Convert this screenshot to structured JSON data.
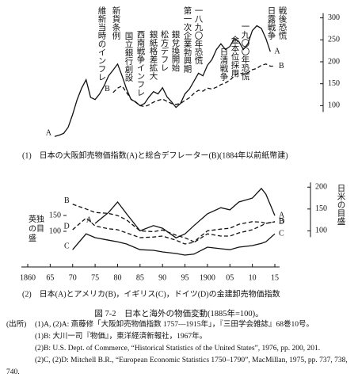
{
  "chart_data": [
    {
      "type": "line",
      "annotations": [
        "維新当時のインフレ",
        "新貨条例",
        "国立銀行創設",
        "西南戦争インフレ",
        "銀紙格差拡大",
        "松方デフレ",
        "銀兌換開始",
        "第一次企業勃興期",
        "一八九〇年恐慌",
        "日清戦争",
        "金本位採用",
        "一九〇〇年恐慌",
        "日露戦争",
        "戦後恐慌"
      ],
      "caption": "(1)　日本の大阪卸売物価指数(A)と総合デフレーター(B)(1884年以前紙幣建)",
      "x": [
        1866,
        1867,
        1868,
        1869,
        1870,
        1871,
        1872,
        1873,
        1874,
        1875,
        1876,
        1877,
        1878,
        1879,
        1880,
        1881,
        1882,
        1883,
        1884,
        1885,
        1886,
        1887,
        1888,
        1889,
        1890,
        1891,
        1892,
        1893,
        1894,
        1895,
        1896,
        1897,
        1898,
        1899,
        1900,
        1901,
        1902,
        1903,
        1904,
        1905,
        1906,
        1907,
        1908,
        1909,
        1910,
        1911,
        1912,
        1913,
        1914,
        1915
      ],
      "xlim": [
        1860,
        1915
      ],
      "series": [
        {
          "name": "A",
          "color": "#111111",
          "style": "solid",
          "values": [
            30,
            33,
            37,
            51,
            80,
            114,
            140,
            159,
            119,
            114,
            127,
            145,
            168,
            181,
            195,
            168,
            138,
            114,
            109,
            100,
            105,
            120,
            132,
            127,
            141,
            120,
            109,
            96,
            105,
            127,
            138,
            156,
            174,
            168,
            192,
            205,
            228,
            241,
            228,
            235,
            253,
            246,
            228,
            241,
            271,
            282,
            276,
            253,
            223,
            null
          ]
        },
        {
          "name": "B",
          "color": "#111111",
          "style": "dashed",
          "values": [
            null,
            null,
            null,
            null,
            null,
            null,
            null,
            null,
            null,
            null,
            null,
            null,
            null,
            130,
            140,
            145,
            130,
            115,
            108,
            100,
            98,
            102,
            108,
            112,
            115,
            110,
            105,
            103,
            105,
            112,
            118,
            128,
            135,
            133,
            140,
            138,
            142,
            148,
            152,
            158,
            168,
            175,
            172,
            175,
            182,
            185,
            192,
            195,
            190,
            190
          ]
        }
      ],
      "ylim": [
        25,
        310
      ],
      "yticks": [
        100,
        150,
        200,
        250,
        300
      ]
    },
    {
      "type": "line",
      "caption": "(2)　日本(A)とアメリカ(B)，イギリス(C)，ドイツ(D)の金建卸売物価指数",
      "y_label": "日米の目盛",
      "y2_label": "英独の目盛",
      "x": [
        1870,
        1873,
        1875,
        1878,
        1880,
        1882,
        1885,
        1888,
        1890,
        1893,
        1895,
        1897,
        1900,
        1903,
        1905,
        1907,
        1910,
        1912,
        1913,
        1915
      ],
      "xlim": [
        1860,
        1915
      ],
      "xticks": [
        1860,
        {
          "value": 1865,
          "label": "65"
        },
        {
          "value": 1870,
          "label": "70"
        },
        {
          "value": 1875,
          "label": "75"
        },
        {
          "value": 1880,
          "label": "80"
        },
        {
          "value": 1885,
          "label": "85"
        },
        {
          "value": 1890,
          "label": "90"
        },
        {
          "value": 1895,
          "label": "95"
        },
        1900,
        {
          "value": 1905,
          "label": "05"
        },
        {
          "value": 1910,
          "label": "10"
        },
        {
          "value": 1915,
          "label": "15"
        }
      ],
      "series": [
        {
          "name": "B",
          "color": "#111111",
          "style": "dashed",
          "values": [
            161,
            150,
            142,
            140,
            135,
            125,
            100,
            98,
            102,
            90,
            84,
            75,
            100,
            104,
            106,
            115,
            121,
            120,
            117,
            121
          ]
        },
        {
          "name": "A",
          "color": "#111111",
          "style": "solid",
          "values": [
            null,
            null,
            117,
            142,
            166,
            139,
            100,
            112,
            106,
            84,
            93,
            112,
            139,
            153,
            148,
            166,
            175,
            197,
            184,
            135
          ]
        },
        {
          "name": "C",
          "color": "#111111",
          "style": "solid",
          "axis": "y2",
          "values": [
            42,
            92,
            80,
            72,
            67,
            60,
            42,
            40,
            35,
            30,
            25,
            28,
            50,
            45,
            42,
            50,
            55,
            62,
            67,
            92
          ]
        },
        {
          "name": "D",
          "color": "#111111",
          "style": "dashed",
          "axis": "y2",
          "values": [
            105,
            142,
            117,
            108,
            105,
            95,
            80,
            82,
            85,
            72,
            60,
            65,
            92,
            85,
            85,
            95,
            105,
            118,
            125,
            130
          ]
        }
      ],
      "ylim": [
        30,
        215
      ],
      "yticks": [
        100,
        150,
        200
      ],
      "y2lim": [
        5,
        260
      ],
      "y2ticks": [
        100,
        150
      ]
    }
  ],
  "figure": {
    "title": "図 7-2　日本と海外の物価変動(1885年=100)。",
    "sources_label": "(出所)",
    "sources": [
      "(1)A, (2)A: 斎藤修「大阪卸売物価指数 1757—1915年」，『三田学会雑誌』68巻10号。",
      "(1)B: 大川一司『物価』，東洋経済新報社，1967年。",
      "(2)B: U.S. Dept. of Commerce, “Historical Statistics of the United States”, 1976, pp. 200, 201.",
      "(2)C, (2)D: Mitchell B.R., “European Economic Statistics 1750–1790”, MacMillan, 1975, pp. 737, 738, 740."
    ]
  }
}
